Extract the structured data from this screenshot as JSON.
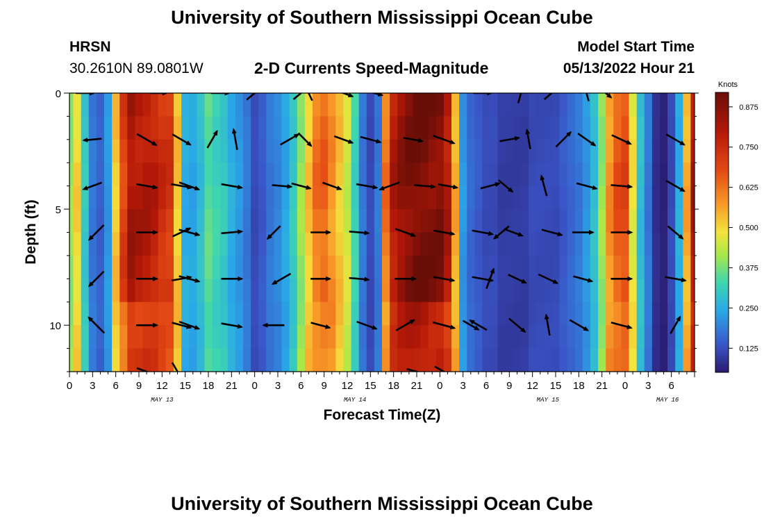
{
  "header": {
    "title": "University of Southern Mississippi Ocean Cube",
    "station": "HRSN",
    "coords": "30.2610N  89.0801W",
    "plot_title": "2-D Currents Speed-Magnitude",
    "model_label": "Model Start Time",
    "model_time": "05/13/2022 Hour 21"
  },
  "footer": {
    "title": "University of Southern Mississippi Ocean Cube"
  },
  "colors": {
    "arrow": "#000000",
    "axis": "#000000"
  },
  "chart_data": {
    "type": "heatmap",
    "title": "2-D Currents Speed-Magnitude",
    "xlabel": "Forecast Time(Z)",
    "ylabel": "Depth (ft)",
    "x_range_hours": [
      0,
      81
    ],
    "y_range_ft": [
      0,
      12
    ],
    "y_ticks": [
      0,
      5,
      10
    ],
    "x_tick_labels": [
      "0",
      "3",
      "6",
      "9",
      "12",
      "15",
      "18",
      "21",
      "0",
      "3",
      "6",
      "9",
      "12",
      "15",
      "18",
      "21",
      "0",
      "3",
      "6",
      "9",
      "12",
      "15",
      "18",
      "21",
      "0",
      "3",
      "6"
    ],
    "date_labels": [
      {
        "label": "MAY 13",
        "hour": 12
      },
      {
        "label": "MAY 14",
        "hour": 37
      },
      {
        "label": "MAY 15",
        "hour": 62
      },
      {
        "label": "MAY 16",
        "hour": 77.5
      }
    ],
    "colorbar": {
      "unit": "Knots",
      "min": 0.05,
      "max": 0.92,
      "ticks": [
        "0.125",
        "0.250",
        "0.375",
        "0.500",
        "0.625",
        "0.750",
        "0.875"
      ]
    },
    "speed_profile_hours": [
      0,
      1,
      2,
      3,
      4,
      5,
      6,
      7,
      8,
      9,
      10,
      11,
      12,
      13,
      14,
      15,
      16,
      17,
      18,
      19,
      20,
      21,
      22,
      23,
      24,
      25,
      26,
      27,
      28,
      29,
      30,
      31,
      32,
      33,
      34,
      35,
      36,
      37,
      38,
      39,
      40,
      41,
      42,
      43,
      44,
      45,
      46,
      47,
      48,
      49,
      50,
      51,
      52,
      53,
      54,
      55,
      56,
      57,
      58,
      59,
      60,
      61,
      62,
      63,
      64,
      65,
      66,
      67,
      68,
      69,
      70,
      71,
      72,
      73,
      74,
      75,
      76,
      77,
      78,
      79,
      80,
      81
    ],
    "speed_profile_knots": [
      0.4,
      0.5,
      0.3,
      0.18,
      0.15,
      0.22,
      0.52,
      0.7,
      0.82,
      0.8,
      0.8,
      0.78,
      0.74,
      0.72,
      0.52,
      0.25,
      0.24,
      0.28,
      0.35,
      0.32,
      0.3,
      0.25,
      0.22,
      0.18,
      0.12,
      0.14,
      0.18,
      0.2,
      0.24,
      0.3,
      0.4,
      0.52,
      0.62,
      0.64,
      0.58,
      0.52,
      0.45,
      0.32,
      0.18,
      0.12,
      0.18,
      0.62,
      0.8,
      0.85,
      0.88,
      0.9,
      0.9,
      0.88,
      0.88,
      0.8,
      0.55,
      0.22,
      0.16,
      0.14,
      0.12,
      0.12,
      0.1,
      0.1,
      0.1,
      0.1,
      0.12,
      0.12,
      0.12,
      0.12,
      0.14,
      0.16,
      0.18,
      0.22,
      0.28,
      0.4,
      0.58,
      0.66,
      0.68,
      0.48,
      0.28,
      0.18,
      0.08,
      0.06,
      0.12,
      0.25,
      0.55,
      0.82
    ],
    "vectors": [
      {
        "hour": 2.0,
        "depth": 0.0,
        "angle": 0,
        "len": 26
      },
      {
        "hour": 11.5,
        "depth": 0.0,
        "angle": 0,
        "len": 24
      },
      {
        "hour": 19.5,
        "depth": 0.0,
        "angle": 0,
        "len": 26
      },
      {
        "hour": 24.0,
        "depth": 0.0,
        "angle": 40,
        "len": 30
      },
      {
        "hour": 30.0,
        "depth": 0.0,
        "angle": 40,
        "len": 28
      },
      {
        "hour": 31.0,
        "depth": 0.0,
        "angle": 115,
        "len": 24
      },
      {
        "hour": 35.5,
        "depth": 0.0,
        "angle": -20,
        "len": 28
      },
      {
        "hour": 39.5,
        "depth": 0.0,
        "angle": -15,
        "len": 24
      },
      {
        "hour": 53.5,
        "depth": 0.0,
        "angle": 0,
        "len": 26
      },
      {
        "hour": 58.5,
        "depth": 0.0,
        "angle": 75,
        "len": 30
      },
      {
        "hour": 62.5,
        "depth": 0.0,
        "angle": 40,
        "len": 28
      },
      {
        "hour": 67.0,
        "depth": 0.0,
        "angle": 105,
        "len": 24
      },
      {
        "hour": 69.5,
        "depth": 0.0,
        "angle": -40,
        "len": 20
      },
      {
        "hour": 3.0,
        "depth": 2.0,
        "angle": 185,
        "len": 26
      },
      {
        "hour": 10.0,
        "depth": 2.0,
        "angle": -30,
        "len": 32
      },
      {
        "hour": 14.5,
        "depth": 2.0,
        "angle": -30,
        "len": 30
      },
      {
        "hour": 18.5,
        "depth": 2.0,
        "angle": 60,
        "len": 28
      },
      {
        "hour": 21.5,
        "depth": 2.0,
        "angle": 100,
        "len": 30
      },
      {
        "hour": 28.5,
        "depth": 2.0,
        "angle": 30,
        "len": 30
      },
      {
        "hour": 30.5,
        "depth": 2.0,
        "angle": -45,
        "len": 26
      },
      {
        "hour": 35.5,
        "depth": 2.0,
        "angle": -20,
        "len": 28
      },
      {
        "hour": 39.0,
        "depth": 2.0,
        "angle": -15,
        "len": 30
      },
      {
        "hour": 44.5,
        "depth": 2.0,
        "angle": -10,
        "len": 28
      },
      {
        "hour": 48.5,
        "depth": 2.0,
        "angle": -20,
        "len": 32
      },
      {
        "hour": 57.0,
        "depth": 2.0,
        "angle": 10,
        "len": 28
      },
      {
        "hour": 59.5,
        "depth": 2.0,
        "angle": 100,
        "len": 28
      },
      {
        "hour": 64.0,
        "depth": 2.0,
        "angle": 45,
        "len": 30
      },
      {
        "hour": 67.0,
        "depth": 2.0,
        "angle": -35,
        "len": 30
      },
      {
        "hour": 71.5,
        "depth": 2.0,
        "angle": -25,
        "len": 30
      },
      {
        "hour": 78.5,
        "depth": 2.0,
        "angle": -30,
        "len": 30
      },
      {
        "hour": 3.0,
        "depth": 4.0,
        "angle": 200,
        "len": 28
      },
      {
        "hour": 10.0,
        "depth": 4.0,
        "angle": -10,
        "len": 30
      },
      {
        "hour": 14.5,
        "depth": 4.0,
        "angle": -10,
        "len": 30
      },
      {
        "hour": 15.5,
        "depth": 4.0,
        "angle": -20,
        "len": 30
      },
      {
        "hour": 21.0,
        "depth": 4.0,
        "angle": -10,
        "len": 30
      },
      {
        "hour": 27.5,
        "depth": 4.0,
        "angle": -5,
        "len": 28
      },
      {
        "hour": 30.0,
        "depth": 4.0,
        "angle": -15,
        "len": 28
      },
      {
        "hour": 34.0,
        "depth": 4.0,
        "angle": -20,
        "len": 28
      },
      {
        "hour": 38.5,
        "depth": 4.0,
        "angle": -10,
        "len": 30
      },
      {
        "hour": 41.5,
        "depth": 4.0,
        "angle": 200,
        "len": 30
      },
      {
        "hour": 46.0,
        "depth": 4.0,
        "angle": -5,
        "len": 30
      },
      {
        "hour": 49.0,
        "depth": 4.0,
        "angle": -10,
        "len": 28
      },
      {
        "hour": 54.5,
        "depth": 4.0,
        "angle": 15,
        "len": 28
      },
      {
        "hour": 56.5,
        "depth": 4.0,
        "angle": -40,
        "len": 26
      },
      {
        "hour": 61.5,
        "depth": 4.0,
        "angle": 105,
        "len": 30
      },
      {
        "hour": 67.0,
        "depth": 4.0,
        "angle": -15,
        "len": 30
      },
      {
        "hour": 71.5,
        "depth": 4.0,
        "angle": -5,
        "len": 30
      },
      {
        "hour": 78.5,
        "depth": 4.0,
        "angle": -30,
        "len": 30
      },
      {
        "hour": 3.5,
        "depth": 6.0,
        "angle": 225,
        "len": 30
      },
      {
        "hour": 10.0,
        "depth": 6.0,
        "angle": 0,
        "len": 30
      },
      {
        "hour": 14.5,
        "depth": 6.0,
        "angle": 25,
        "len": 28
      },
      {
        "hour": 15.5,
        "depth": 6.0,
        "angle": -15,
        "len": 30
      },
      {
        "hour": 21.0,
        "depth": 6.0,
        "angle": 5,
        "len": 30
      },
      {
        "hour": 26.5,
        "depth": 6.0,
        "angle": 225,
        "len": 26
      },
      {
        "hour": 32.5,
        "depth": 6.0,
        "angle": 0,
        "len": 28
      },
      {
        "hour": 37.5,
        "depth": 6.0,
        "angle": -5,
        "len": 28
      },
      {
        "hour": 43.5,
        "depth": 6.0,
        "angle": -20,
        "len": 30
      },
      {
        "hour": 48.5,
        "depth": 6.0,
        "angle": -10,
        "len": 30
      },
      {
        "hour": 53.5,
        "depth": 6.0,
        "angle": -10,
        "len": 30
      },
      {
        "hour": 56.0,
        "depth": 6.0,
        "angle": 220,
        "len": 28
      },
      {
        "hour": 57.5,
        "depth": 6.0,
        "angle": -20,
        "len": 28
      },
      {
        "hour": 62.5,
        "depth": 6.0,
        "angle": -15,
        "len": 30
      },
      {
        "hour": 66.5,
        "depth": 6.0,
        "angle": 0,
        "len": 30
      },
      {
        "hour": 71.5,
        "depth": 6.0,
        "angle": 0,
        "len": 30
      },
      {
        "hour": 78.5,
        "depth": 6.0,
        "angle": -40,
        "len": 28
      },
      {
        "hour": 3.5,
        "depth": 8.0,
        "angle": 225,
        "len": 30
      },
      {
        "hour": 10.0,
        "depth": 8.0,
        "angle": 0,
        "len": 30
      },
      {
        "hour": 14.5,
        "depth": 8.0,
        "angle": 10,
        "len": 28
      },
      {
        "hour": 15.5,
        "depth": 8.0,
        "angle": -15,
        "len": 30
      },
      {
        "hour": 21.0,
        "depth": 8.0,
        "angle": 0,
        "len": 30
      },
      {
        "hour": 27.5,
        "depth": 8.0,
        "angle": 210,
        "len": 30
      },
      {
        "hour": 32.5,
        "depth": 8.0,
        "angle": 0,
        "len": 28
      },
      {
        "hour": 37.5,
        "depth": 8.0,
        "angle": -5,
        "len": 28
      },
      {
        "hour": 43.5,
        "depth": 8.0,
        "angle": 0,
        "len": 30
      },
      {
        "hour": 48.5,
        "depth": 8.0,
        "angle": -10,
        "len": 30
      },
      {
        "hour": 53.5,
        "depth": 8.0,
        "angle": -10,
        "len": 30
      },
      {
        "hour": 54.5,
        "depth": 8.0,
        "angle": 70,
        "len": 30
      },
      {
        "hour": 58.0,
        "depth": 8.0,
        "angle": -25,
        "len": 28
      },
      {
        "hour": 62.0,
        "depth": 8.0,
        "angle": -25,
        "len": 30
      },
      {
        "hour": 66.5,
        "depth": 8.0,
        "angle": -15,
        "len": 28
      },
      {
        "hour": 71.5,
        "depth": 8.0,
        "angle": 0,
        "len": 30
      },
      {
        "hour": 78.5,
        "depth": 8.0,
        "angle": -10,
        "len": 30
      },
      {
        "hour": 3.5,
        "depth": 10.0,
        "angle": 135,
        "len": 32
      },
      {
        "hour": 10.0,
        "depth": 10.0,
        "angle": 0,
        "len": 30
      },
      {
        "hour": 14.5,
        "depth": 10.0,
        "angle": -15,
        "len": 28
      },
      {
        "hour": 15.5,
        "depth": 10.0,
        "angle": -20,
        "len": 30
      },
      {
        "hour": 21.0,
        "depth": 10.0,
        "angle": -10,
        "len": 30
      },
      {
        "hour": 26.5,
        "depth": 10.0,
        "angle": 180,
        "len": 30
      },
      {
        "hour": 32.5,
        "depth": 10.0,
        "angle": -15,
        "len": 28
      },
      {
        "hour": 38.5,
        "depth": 10.0,
        "angle": -20,
        "len": 30
      },
      {
        "hour": 43.5,
        "depth": 10.0,
        "angle": 30,
        "len": 30
      },
      {
        "hour": 48.5,
        "depth": 10.0,
        "angle": -15,
        "len": 32
      },
      {
        "hour": 52.0,
        "depth": 10.0,
        "angle": -30,
        "len": 26
      },
      {
        "hour": 53.0,
        "depth": 10.0,
        "angle": 150,
        "len": 28
      },
      {
        "hour": 58.0,
        "depth": 10.0,
        "angle": -40,
        "len": 30
      },
      {
        "hour": 62.0,
        "depth": 10.0,
        "angle": 100,
        "len": 30
      },
      {
        "hour": 66.0,
        "depth": 10.0,
        "angle": -30,
        "len": 30
      },
      {
        "hour": 71.5,
        "depth": 10.0,
        "angle": -15,
        "len": 30
      },
      {
        "hour": 78.5,
        "depth": 10.0,
        "angle": 60,
        "len": 28
      },
      {
        "hour": 10.0,
        "depth": 12.0,
        "angle": -20,
        "len": 30
      },
      {
        "hour": 14.0,
        "depth": 12.0,
        "angle": -60,
        "len": 30
      },
      {
        "hour": 45.0,
        "depth": 12.0,
        "angle": -15,
        "len": 30
      },
      {
        "hour": 48.5,
        "depth": 12.0,
        "angle": -30,
        "len": 30
      }
    ]
  }
}
